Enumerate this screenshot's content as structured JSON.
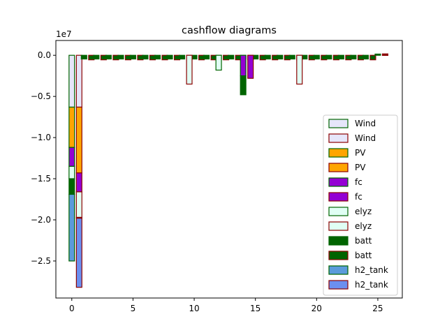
{
  "chart_data": {
    "type": "bar",
    "title": "cashflow diagrams",
    "xlabel": "",
    "ylabel": "",
    "offset_label": "1e7",
    "scale": 10000000,
    "xlim": [
      -1.3,
      27.0
    ],
    "ylim": [
      -29.5,
      1.8
    ],
    "xticks": [
      0,
      5,
      10,
      15,
      20,
      25
    ],
    "yticks": [
      0.0,
      -0.5,
      -1.0,
      -1.5,
      -2.0,
      -2.5
    ],
    "ytick_labels": [
      "0.0",
      "−0.5",
      "−1.0",
      "−1.5",
      "−2.0",
      "−2.5"
    ],
    "bar_width": 0.45,
    "grid": false,
    "legend_position": "lower-right",
    "categories": [
      "Wind",
      "PV",
      "fc",
      "elyz",
      "batt",
      "h2_tank"
    ],
    "groups": [
      {
        "offset": 0.0,
        "edge": "#006400"
      },
      {
        "offset": 0.6,
        "edge": "#8b0000"
      }
    ],
    "legend": [
      {
        "label": "Wind",
        "fill": "#e6e6fa",
        "edge": "#006400"
      },
      {
        "label": "Wind",
        "fill": "#e6e6fa",
        "edge": "#8b0000"
      },
      {
        "label": "PV",
        "fill": "#ffa500",
        "edge": "#006400"
      },
      {
        "label": "PV",
        "fill": "#ffa500",
        "edge": "#8b0000"
      },
      {
        "label": "fc",
        "fill": "#9400d3",
        "edge": "#006400"
      },
      {
        "label": "fc",
        "fill": "#9400d3",
        "edge": "#8b0000"
      },
      {
        "label": "elyz",
        "fill": "#e0fff4",
        "edge": "#006400"
      },
      {
        "label": "elyz",
        "fill": "#e0fff4",
        "edge": "#8b0000"
      },
      {
        "label": "batt",
        "fill": "#006400",
        "edge": "#006400"
      },
      {
        "label": "batt",
        "fill": "#006400",
        "edge": "#8b0000"
      },
      {
        "label": "h2_tank",
        "fill": "#5b9bdb",
        "edge": "#006400"
      },
      {
        "label": "h2_tank",
        "fill": "#6b8ff0",
        "edge": "#8b0000"
      }
    ],
    "series": [
      {
        "group": 0,
        "x": 0,
        "segments": [
          {
            "cat": "Wind",
            "fill": "#e6e6fa",
            "from": 0,
            "to": -6.3
          },
          {
            "cat": "PV",
            "fill": "#ffa500",
            "from": -6.3,
            "to": -11.2
          },
          {
            "cat": "fc",
            "fill": "#9400d3",
            "from": -11.2,
            "to": -13.5
          },
          {
            "cat": "elyz",
            "fill": "#e0fff4",
            "from": -13.5,
            "to": -15.0
          },
          {
            "cat": "batt",
            "fill": "#006400",
            "from": -15.0,
            "to": -16.9
          },
          {
            "cat": "h2_tank",
            "fill": "#5b9bdb",
            "from": -16.9,
            "to": -25.0
          }
        ]
      },
      {
        "group": 1,
        "x": 0,
        "segments": [
          {
            "cat": "Wind",
            "fill": "#e6e6fa",
            "from": 0,
            "to": -6.3
          },
          {
            "cat": "PV",
            "fill": "#ffa500",
            "from": -6.3,
            "to": -14.3
          },
          {
            "cat": "fc",
            "fill": "#9400d3",
            "from": -14.3,
            "to": -16.6
          },
          {
            "cat": "elyz",
            "fill": "#e0fff4",
            "from": -16.6,
            "to": -19.7
          },
          {
            "cat": "batt",
            "fill": "#006400",
            "from": -19.7,
            "to": -19.8
          },
          {
            "cat": "h2_tank",
            "fill": "#6b8ff0",
            "from": -19.8,
            "to": -28.2
          }
        ]
      }
    ],
    "small_bars": {
      "years": [
        1,
        2,
        3,
        4,
        5,
        6,
        7,
        8,
        9,
        10,
        11,
        12,
        13,
        14,
        15,
        16,
        17,
        18,
        19,
        20,
        21,
        22,
        23,
        24
      ],
      "green_value": -0.45,
      "red_value": -0.55,
      "fill": "#006400"
    },
    "special_bars": [
      {
        "group": 1,
        "x": 9,
        "cat": "elyz",
        "fill": "#e0fff4",
        "from": 0,
        "to": -35.0
      },
      {
        "group": 0,
        "x": 12,
        "cat": "elyz",
        "fill": "#e0fff4",
        "from": 0,
        "to": -18.0
      },
      {
        "group": 0,
        "x": 14,
        "cat": "fc",
        "fill": "#9400d3",
        "from": 0,
        "to": -25.0
      },
      {
        "group": 0,
        "x": 14,
        "cat": "batt",
        "fill": "#006400",
        "from": -25.0,
        "to": -48.0
      },
      {
        "group": 1,
        "x": 14,
        "cat": "fc",
        "fill": "#9400d3",
        "from": 0,
        "to": -28.0
      },
      {
        "group": 1,
        "x": 18,
        "cat": "elyz",
        "fill": "#e0fff4",
        "from": 0,
        "to": -35.0
      },
      {
        "group": 0,
        "x": 25,
        "cat": "batt",
        "fill": "#006400",
        "from": 0,
        "to": 1.5
      },
      {
        "group": 1,
        "x": 25,
        "cat": "fc",
        "fill": "#9400d3",
        "from": 0,
        "to": 0.7
      },
      {
        "group": 1,
        "x": 25,
        "cat": "elyz",
        "fill": "#e0fff4",
        "from": 0.7,
        "to": 1.7
      }
    ]
  }
}
